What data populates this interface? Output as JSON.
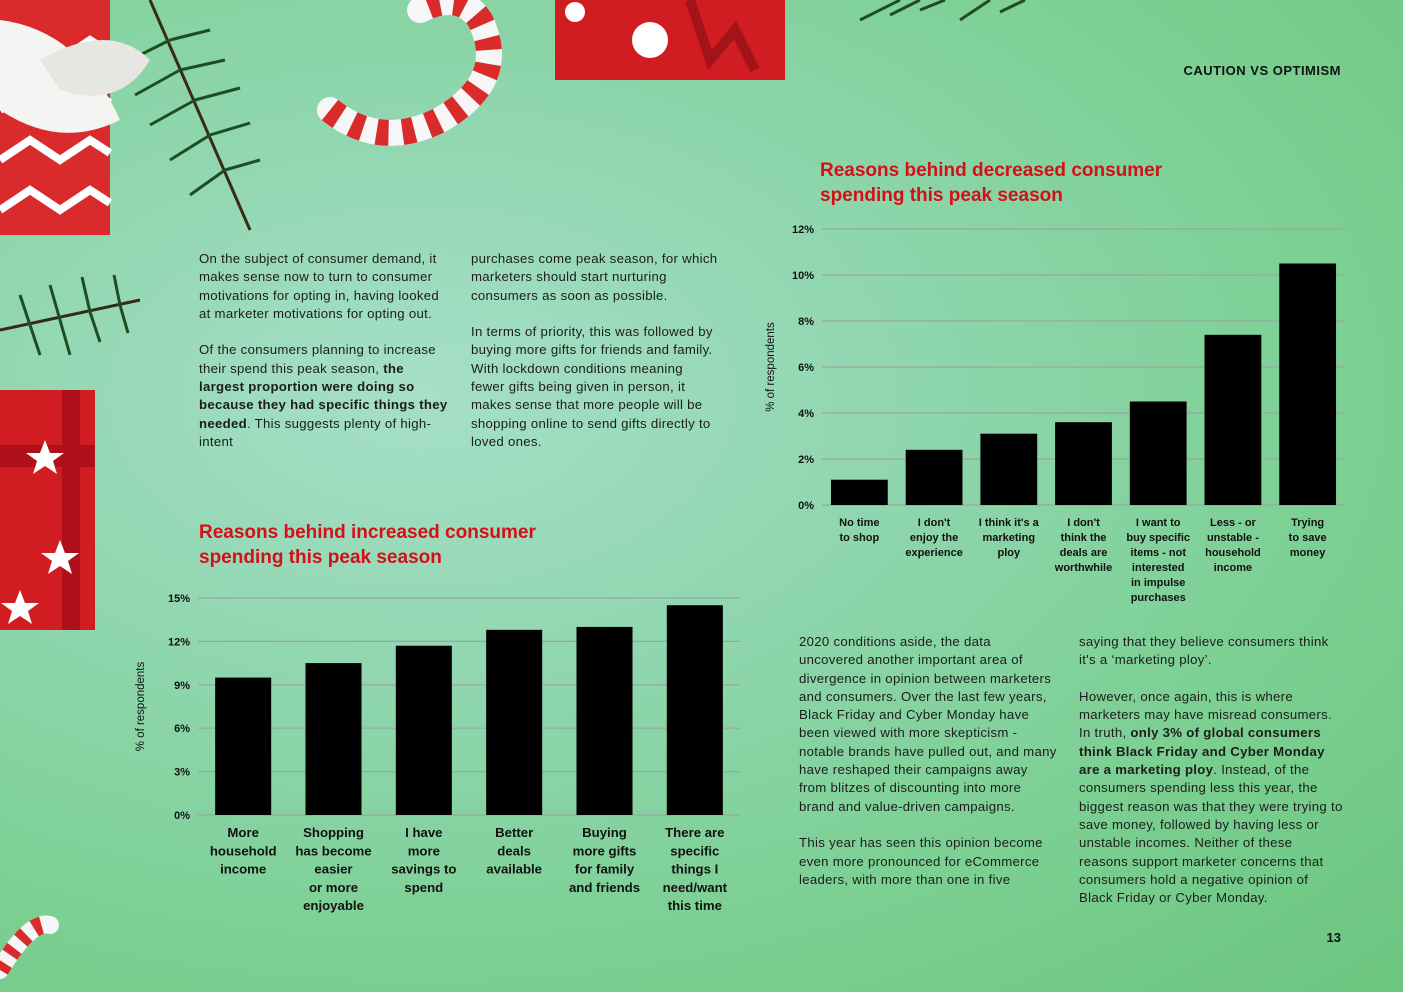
{
  "header": {
    "section_title": "CAUTION VS OPTIMISM",
    "page_number": "13"
  },
  "intro": {
    "left_para1": "On the subject of consumer demand, it makes sense now to turn to consumer motivations for opting in, having looked at marketer motivations for opting out.",
    "left_para2_pre": "Of the consumers planning to increase their spend this peak season, ",
    "left_para2_bold": "the largest proportion were doing so because they had specific things they needed",
    "left_para2_post": ". This suggests plenty of high-intent",
    "right_para1": "purchases come peak season, for which marketers should start nurturing consumers as soon as possible.",
    "right_para2": "In terms of priority, this was followed by buying more gifts for friends and family. With lockdown conditions meaning fewer gifts being given in person, it makes sense that more people will be shopping online to send gifts directly to loved ones."
  },
  "bottom_text": {
    "left_para1": "2020 conditions aside, the data uncovered another important area of divergence in opinion between marketers and consumers. Over the last few years, Black Friday and Cyber Monday have been viewed with more skepticism - notable brands have pulled out, and many have reshaped their campaigns away from blitzes of discounting into more brand and value-driven campaigns.",
    "left_para2": "This year has seen this opinion become even more pronounced for eCommerce leaders, with more than one in five",
    "right_para1": "saying that they believe consumers think it's a ‘marketing ploy’.",
    "right_para2_pre": "However, once again, this is where marketers may have misread consumers. In truth, ",
    "right_para2_bold": "only 3% of global consumers think Black Friday and Cyber Monday are a marketing ploy",
    "right_para2_post": ". Instead, of the consumers spending less this year, the biggest reason was that they were trying to save money, followed by having less or unstable incomes. Neither of these reasons support marketer concerns that consumers hold a negative opinion of Black Friday or Cyber Monday."
  },
  "chart_titles": {
    "increased": {
      "pre": "Reasons behind ",
      "emph": "increased",
      "post": " consumer",
      "line2": "spending this peak season"
    },
    "decreased": {
      "pre": "Reasons behind ",
      "emph": "decreased",
      "post": " consumer",
      "line2": "spending this peak season"
    }
  },
  "chart_data": [
    {
      "id": "increased",
      "type": "bar",
      "title": "Reasons behind increased consumer spending this peak season",
      "ylabel": "% of respondents",
      "ylim": [
        0,
        15
      ],
      "yticks": [
        "0%",
        "3%",
        "6%",
        "9%",
        "12%",
        "15%"
      ],
      "grid": true,
      "bar_color": "#000000",
      "categories": [
        [
          "More",
          "household",
          "income"
        ],
        [
          "Shopping",
          "has become",
          "easier",
          "or more",
          "enjoyable"
        ],
        [
          "I have",
          "more",
          "savings to",
          "spend"
        ],
        [
          "Better",
          "deals",
          "available"
        ],
        [
          "Buying",
          "more gifts",
          "for family",
          "and friends"
        ],
        [
          "There are",
          "specific",
          "things I",
          "need/want",
          "this time"
        ]
      ],
      "values": [
        9.5,
        10.5,
        11.7,
        12.8,
        13.0,
        14.5
      ]
    },
    {
      "id": "decreased",
      "type": "bar",
      "title": "Reasons behind decreased consumer spending this peak season",
      "ylabel": "% of respondents",
      "ylim": [
        0,
        12
      ],
      "yticks": [
        "0%",
        "2%",
        "4%",
        "6%",
        "8%",
        "10%",
        "12%"
      ],
      "grid": true,
      "bar_color": "#000000",
      "categories": [
        [
          "No time",
          "to shop"
        ],
        [
          "I don't",
          "enjoy the",
          "experience"
        ],
        [
          "I think it's a",
          "marketing",
          "ploy"
        ],
        [
          "I don't",
          "think the",
          "deals are",
          "worthwhile"
        ],
        [
          "I want to",
          "buy specific",
          "items - not",
          "interested",
          "in impulse",
          "purchases"
        ],
        [
          "Less - or",
          "unstable -",
          "household",
          "income"
        ],
        [
          "Trying",
          "to save",
          "money"
        ]
      ],
      "values": [
        1.1,
        2.4,
        3.1,
        3.6,
        4.5,
        7.4,
        10.5
      ]
    }
  ],
  "colors": {
    "accent": "#d40f18",
    "background": "#8fd6ae"
  },
  "decorations": [
    "christmas-gift-box",
    "candy-cane",
    "pine-branch",
    "ribbon-bow"
  ]
}
